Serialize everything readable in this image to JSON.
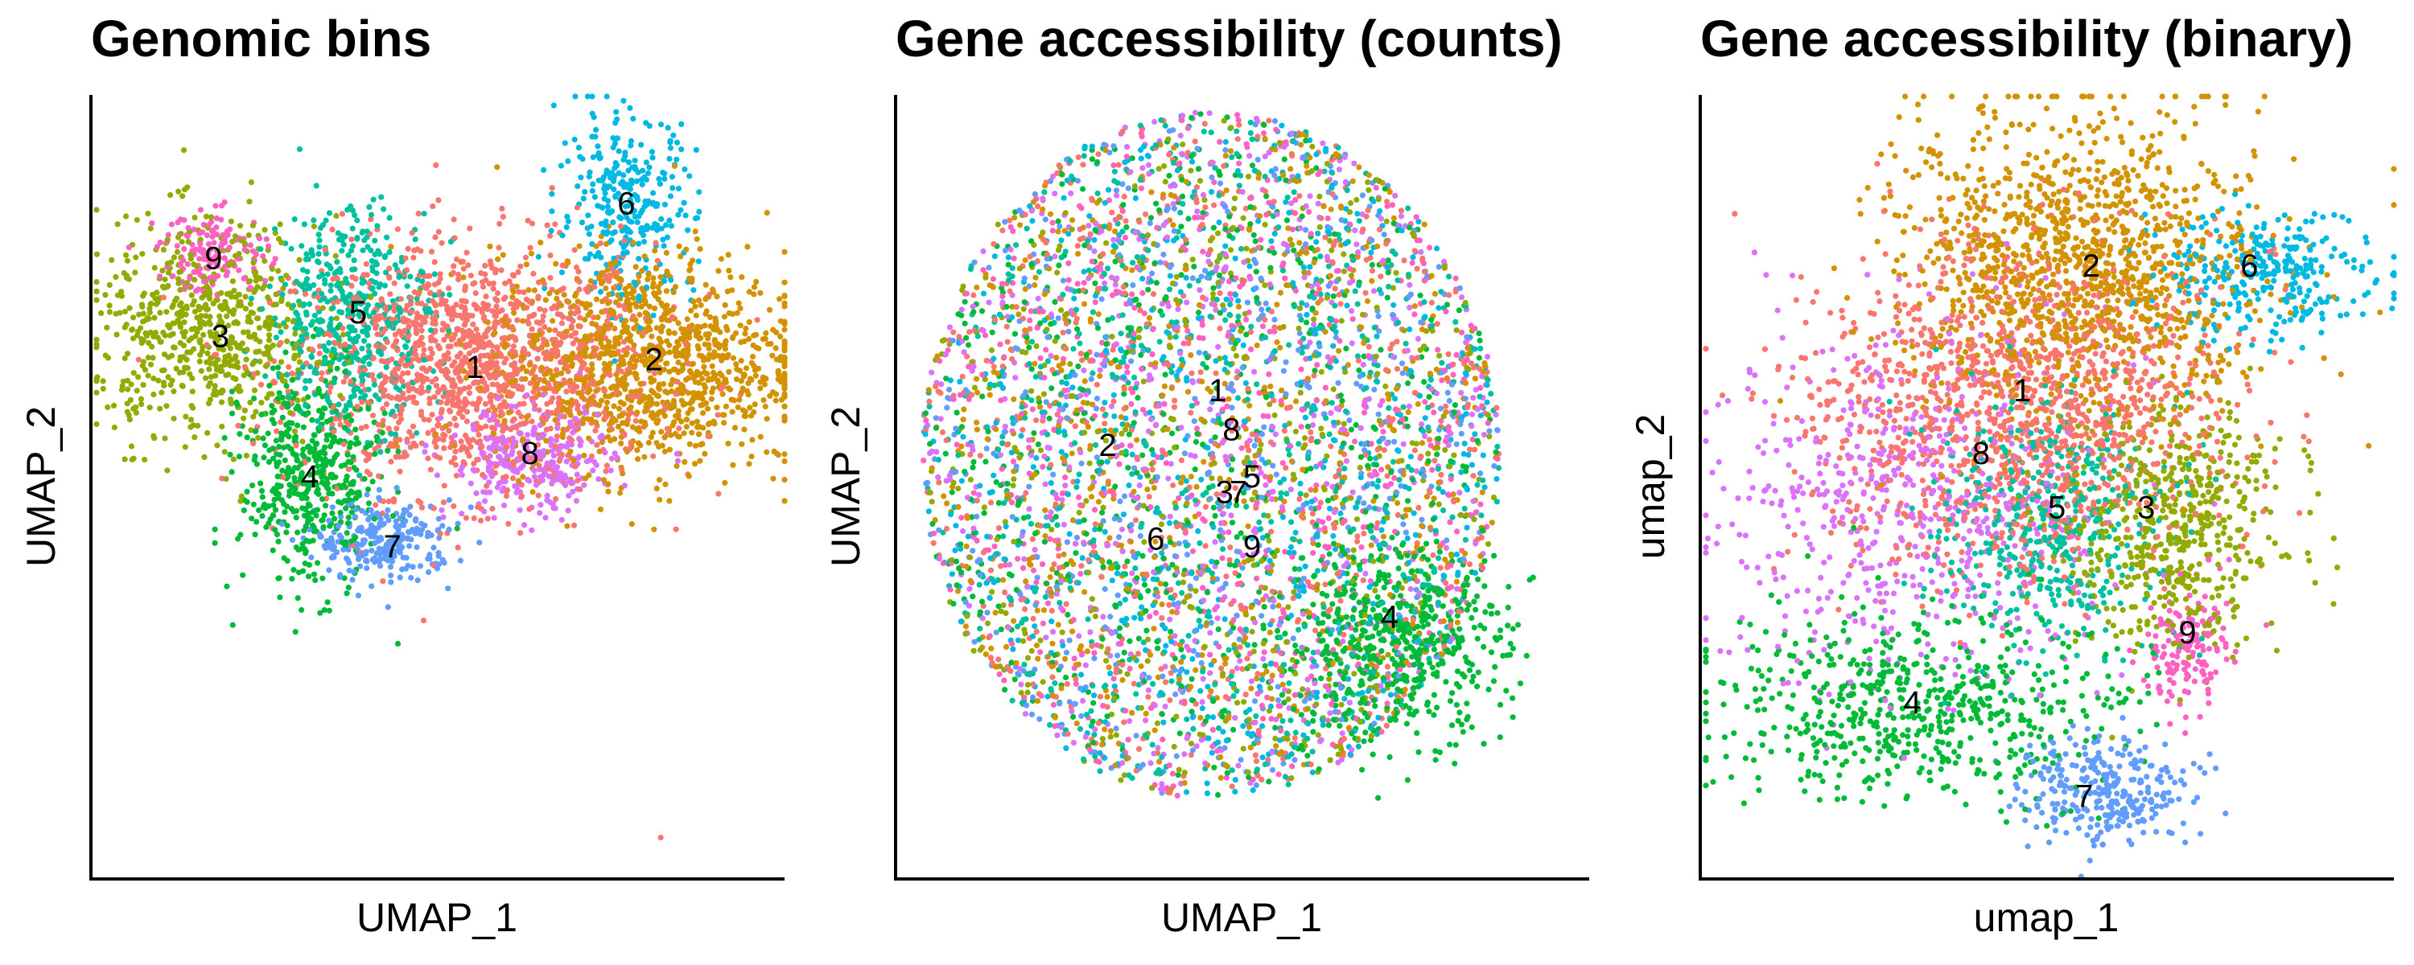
{
  "palette": {
    "1": "#F8766D",
    "2": "#D39200",
    "3": "#93AA00",
    "4": "#00BA38",
    "5": "#00C19F",
    "6": "#00B9E3",
    "7": "#619CFF",
    "8": "#DB72FB",
    "9": "#FF61C3"
  },
  "chart_data": [
    {
      "type": "scatter",
      "title": "Genomic bins",
      "xlabel": "UMAP_1",
      "ylabel": "UMAP_2",
      "grid": false,
      "legend": "none",
      "xlim": [
        0,
        100
      ],
      "ylim": [
        0,
        100
      ],
      "clusters": [
        {
          "label": "1",
          "x": 55,
          "y": 65,
          "sx": 13,
          "sy": 8,
          "n": 1400
        },
        {
          "label": "2",
          "x": 80,
          "y": 66,
          "sx": 11,
          "sy": 7,
          "n": 1100
        },
        {
          "label": "3",
          "x": 16,
          "y": 70,
          "sx": 8,
          "sy": 7,
          "n": 650
        },
        {
          "label": "4",
          "x": 31,
          "y": 51,
          "sx": 5,
          "sy": 7,
          "n": 480
        },
        {
          "label": "5",
          "x": 37,
          "y": 72,
          "sx": 6,
          "sy": 7,
          "n": 480
        },
        {
          "label": "6",
          "x": 77,
          "y": 86,
          "sx": 5,
          "sy": 6,
          "n": 300
        },
        {
          "label": "7",
          "x": 42,
          "y": 43,
          "sx": 5,
          "sy": 2.5,
          "n": 250
        },
        {
          "label": "8",
          "x": 63,
          "y": 53,
          "sx": 6,
          "sy": 3.5,
          "n": 280
        },
        {
          "label": "9",
          "x": 17,
          "y": 80,
          "sx": 4,
          "sy": 2.5,
          "n": 150
        }
      ],
      "labels": [
        {
          "text": "1",
          "x": 55,
          "y": 65
        },
        {
          "text": "2",
          "x": 81,
          "y": 66
        },
        {
          "text": "3",
          "x": 18,
          "y": 69
        },
        {
          "text": "4",
          "x": 31,
          "y": 51
        },
        {
          "text": "5",
          "x": 38,
          "y": 72
        },
        {
          "text": "6",
          "x": 77,
          "y": 86
        },
        {
          "text": "7",
          "x": 43,
          "y": 42
        },
        {
          "text": "8",
          "x": 63,
          "y": 54
        },
        {
          "text": "9",
          "x": 17,
          "y": 79
        }
      ],
      "outliers": [
        {
          "label": "1",
          "x": 82,
          "y": 5
        }
      ]
    },
    {
      "type": "scatter",
      "title": "Gene accessibility (counts)",
      "xlabel": "UMAP_1",
      "ylabel": "UMAP_2",
      "grid": false,
      "legend": "none",
      "xlim": [
        0,
        100
      ],
      "ylim": [
        0,
        100
      ],
      "cloud": {
        "x": 45,
        "y": 54,
        "rx": 42,
        "ry": 44,
        "n": 5200
      },
      "clusters": [
        {
          "label": "4",
          "x": 72,
          "y": 30,
          "sx": 8,
          "sy": 6,
          "n": 550
        }
      ],
      "labels": [
        {
          "text": "1",
          "x": 46,
          "y": 62
        },
        {
          "text": "8",
          "x": 48,
          "y": 57
        },
        {
          "text": "2",
          "x": 30,
          "y": 55
        },
        {
          "text": "5",
          "x": 51,
          "y": 51
        },
        {
          "text": "3",
          "x": 47,
          "y": 49
        },
        {
          "text": "7",
          "x": 49,
          "y": 49
        },
        {
          "text": "6",
          "x": 37,
          "y": 43
        },
        {
          "text": "9",
          "x": 51,
          "y": 42
        },
        {
          "text": "4",
          "x": 71,
          "y": 33
        }
      ]
    },
    {
      "type": "scatter",
      "title": "Gene accessibility (binary)",
      "xlabel": "umap_1",
      "ylabel": "umap_2",
      "grid": false,
      "legend": "none",
      "xlim": [
        0,
        100
      ],
      "ylim": [
        0,
        100
      ],
      "clusters": [
        {
          "label": "2",
          "x": 55,
          "y": 78,
          "sx": 13,
          "sy": 10,
          "n": 1300
        },
        {
          "label": "1",
          "x": 45,
          "y": 60,
          "sx": 15,
          "sy": 10,
          "n": 1300
        },
        {
          "label": "3",
          "x": 68,
          "y": 45,
          "sx": 8,
          "sy": 8,
          "n": 550
        },
        {
          "label": "4",
          "x": 30,
          "y": 22,
          "sx": 15,
          "sy": 6,
          "n": 600
        },
        {
          "label": "5",
          "x": 50,
          "y": 45,
          "sx": 8,
          "sy": 8,
          "n": 450
        },
        {
          "label": "6",
          "x": 82,
          "y": 77,
          "sx": 8,
          "sy": 4,
          "n": 300
        },
        {
          "label": "7",
          "x": 58,
          "y": 11,
          "sx": 6,
          "sy": 3.5,
          "n": 300
        },
        {
          "label": "8",
          "x": 30,
          "y": 47,
          "sx": 14,
          "sy": 12,
          "n": 600
        },
        {
          "label": "9",
          "x": 70,
          "y": 29,
          "sx": 3,
          "sy": 4,
          "n": 150
        }
      ],
      "labels": [
        {
          "text": "2",
          "x": 56,
          "y": 78
        },
        {
          "text": "6",
          "x": 79,
          "y": 78
        },
        {
          "text": "1",
          "x": 46,
          "y": 62
        },
        {
          "text": "8",
          "x": 40,
          "y": 54
        },
        {
          "text": "5",
          "x": 51,
          "y": 47
        },
        {
          "text": "3",
          "x": 64,
          "y": 47
        },
        {
          "text": "9",
          "x": 70,
          "y": 31
        },
        {
          "text": "4",
          "x": 30,
          "y": 22
        },
        {
          "text": "7",
          "x": 55,
          "y": 10
        }
      ]
    }
  ]
}
